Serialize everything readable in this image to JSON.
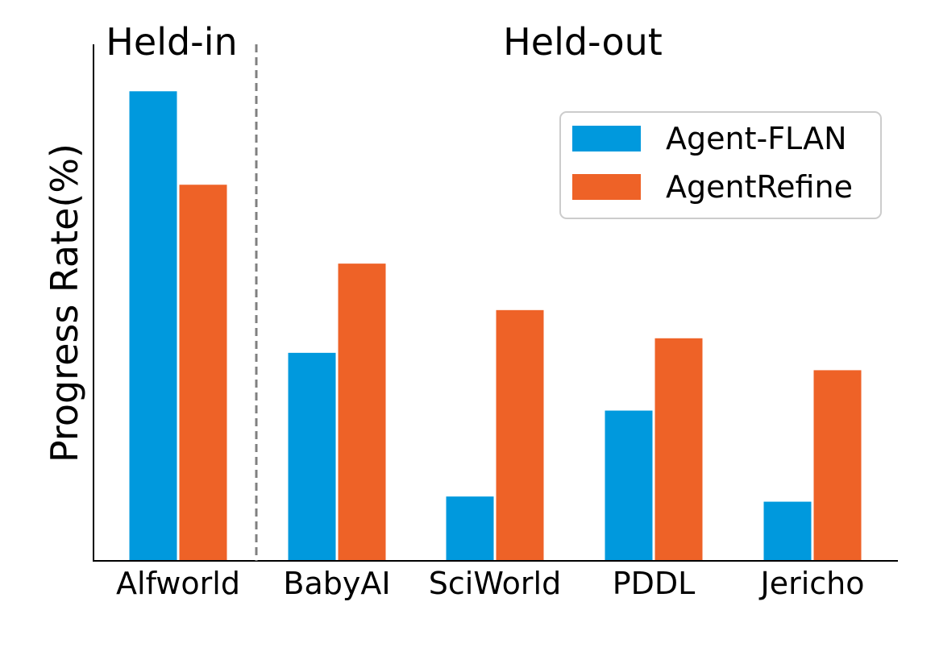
{
  "chart_data": {
    "type": "bar",
    "ylabel": "Progress Rate(%)",
    "categories": [
      "Alfworld",
      "BabyAI",
      "SciWorld",
      "PDDL",
      "Jericho"
    ],
    "series": [
      {
        "name": "Agent-FLAN",
        "color": "#0099dd",
        "values": [
          100,
          44.3,
          13.7,
          32,
          12.6
        ]
      },
      {
        "name": "AgentRefine",
        "color": "#ee6227",
        "values": [
          80.1,
          63.3,
          53.4,
          47.4,
          40.6
        ]
      }
    ],
    "ylim": [
      0,
      110
    ],
    "y_ticks_shown": false,
    "grid": false,
    "legend": {
      "position": "top-right"
    },
    "regions": [
      {
        "label": "Held-in",
        "categories": [
          "Alfworld"
        ]
      },
      {
        "label": "Held-out",
        "categories": [
          "BabyAI",
          "SciWorld",
          "PDDL",
          "Jericho"
        ]
      }
    ],
    "divider": {
      "style": "dashed",
      "color": "#808080",
      "between": [
        "Alfworld",
        "BabyAI"
      ]
    }
  }
}
